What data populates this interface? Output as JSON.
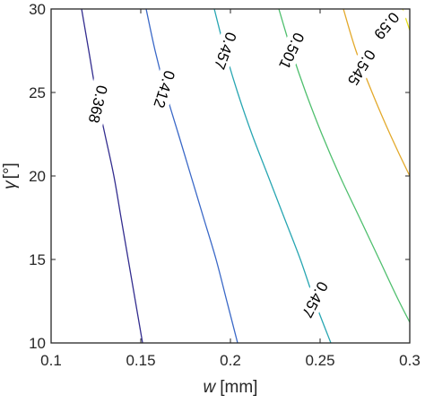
{
  "chart_data": {
    "type": "contour",
    "xlabel_symbol": "w",
    "xlabel_unit": "[mm]",
    "ylabel_symbol": "γ",
    "ylabel_unit": "[°]",
    "xlim": [
      0.1,
      0.3
    ],
    "ylim": [
      10,
      30
    ],
    "xticks": [
      0.1,
      0.15,
      0.2,
      0.25,
      0.3
    ],
    "xtick_labels": [
      "0.1",
      "0.15",
      "0.2",
      "0.25",
      "0.3"
    ],
    "yticks": [
      10,
      15,
      20,
      25,
      30
    ],
    "ytick_labels": [
      "10",
      "15",
      "20",
      "25",
      "30"
    ],
    "grid": false,
    "series": [
      {
        "level": "0.368",
        "color": "#332d8f",
        "points": [
          [
            0.117,
            30
          ],
          [
            0.121,
            27.5
          ],
          [
            0.125,
            25
          ],
          [
            0.13,
            22.5
          ],
          [
            0.135,
            20
          ],
          [
            0.139,
            17.5
          ],
          [
            0.143,
            15
          ],
          [
            0.147,
            12.5
          ],
          [
            0.151,
            10
          ]
        ],
        "labels": [
          {
            "x": 0.126,
            "y": 24.3,
            "angle": -76
          }
        ]
      },
      {
        "level": "0.412",
        "color": "#3a68c7",
        "points": [
          [
            0.153,
            30
          ],
          [
            0.158,
            27.5
          ],
          [
            0.164,
            25
          ],
          [
            0.171,
            22.5
          ],
          [
            0.178,
            20
          ],
          [
            0.185,
            17.5
          ],
          [
            0.192,
            15
          ],
          [
            0.198,
            12.5
          ],
          [
            0.204,
            10
          ]
        ],
        "labels": [
          {
            "x": 0.163,
            "y": 25.2,
            "angle": -72
          }
        ]
      },
      {
        "level": "0.457",
        "color": "#28a6b2",
        "points": [
          [
            0.191,
            30
          ],
          [
            0.197,
            27.5
          ],
          [
            0.204,
            25
          ],
          [
            0.212,
            22.5
          ],
          [
            0.221,
            20
          ],
          [
            0.23,
            17.5
          ],
          [
            0.239,
            15
          ],
          [
            0.247,
            12.5
          ],
          [
            0.256,
            10
          ]
        ],
        "labels": [
          {
            "x": 0.197,
            "y": 27.5,
            "angle": -70
          },
          {
            "x": 0.247,
            "y": 12.6,
            "angle": -62
          }
        ]
      },
      {
        "level": "0.501",
        "color": "#4fbf6e",
        "points": [
          [
            0.227,
            30
          ],
          [
            0.234,
            27.5
          ],
          [
            0.242,
            25
          ],
          [
            0.251,
            22.5
          ],
          [
            0.261,
            20
          ],
          [
            0.272,
            17.5
          ],
          [
            0.283,
            15
          ],
          [
            0.294,
            12.5
          ],
          [
            0.306,
            10
          ]
        ],
        "labels": [
          {
            "x": 0.234,
            "y": 27.5,
            "angle": -64
          }
        ]
      },
      {
        "level": "0.545",
        "color": "#e3a92b",
        "points": [
          [
            0.263,
            30
          ],
          [
            0.27,
            27.5
          ],
          [
            0.279,
            25
          ],
          [
            0.289,
            22.5
          ],
          [
            0.3,
            20
          ],
          [
            0.312,
            17.5
          ]
        ],
        "labels": [
          {
            "x": 0.273,
            "y": 26.5,
            "angle": -58
          }
        ]
      },
      {
        "level": "0.59",
        "color": "#e6de1a",
        "points": [
          [
            0.296,
            30
          ],
          [
            0.304,
            27.5
          ],
          [
            0.313,
            25
          ]
        ],
        "labels": [
          {
            "x": 0.287,
            "y": 29.0,
            "angle": -50
          }
        ]
      }
    ]
  }
}
